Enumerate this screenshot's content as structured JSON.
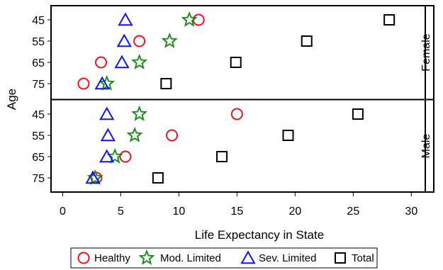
{
  "chart_data": {
    "type": "scatter",
    "title": "",
    "xlabel": "Life Expectancy in State",
    "ylabel": "Age",
    "xlim": [
      -1,
      31.2
    ],
    "xticks": [
      0,
      5,
      10,
      15,
      20,
      25,
      30
    ],
    "categories": [
      "45",
      "55",
      "65",
      "75"
    ],
    "panels": [
      {
        "name": "Female",
        "series": [
          {
            "name": "Healthy",
            "values": [
              11.7,
              6.6,
              3.3,
              1.8
            ]
          },
          {
            "name": "Mod. Limited",
            "values": [
              10.9,
              9.2,
              6.6,
              3.8
            ]
          },
          {
            "name": "Sev. Limited",
            "values": [
              5.4,
              5.3,
              5.1,
              3.4
            ]
          },
          {
            "name": "Total",
            "values": [
              28.1,
              21.0,
              14.9,
              8.9
            ]
          }
        ]
      },
      {
        "name": "Male",
        "series": [
          {
            "name": "Healthy",
            "values": [
              15.0,
              9.4,
              5.4,
              2.9
            ]
          },
          {
            "name": "Mod. Limited",
            "values": [
              6.6,
              6.2,
              4.5,
              2.8
            ]
          },
          {
            "name": "Sev. Limited",
            "values": [
              3.8,
              3.9,
              3.8,
              2.6
            ]
          },
          {
            "name": "Total",
            "values": [
              25.4,
              19.4,
              13.7,
              8.2
            ]
          }
        ]
      }
    ],
    "series_styles": [
      {
        "name": "Healthy",
        "marker": "circle",
        "color": "#e8141e"
      },
      {
        "name": "Mod. Limited",
        "marker": "star",
        "color": "#1e8c1e"
      },
      {
        "name": "Sev. Limited",
        "marker": "triangle",
        "color": "#1414e6"
      },
      {
        "name": "Total",
        "marker": "square",
        "color": "#000000"
      }
    ],
    "legend_position": "bottom",
    "grid": false
  }
}
